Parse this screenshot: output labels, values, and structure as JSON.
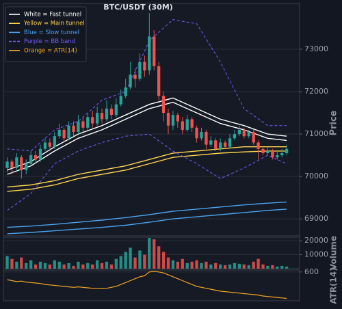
{
  "chart_data": {
    "type": "candlestick",
    "title": "BTC/USDT (30M)",
    "ylabel": "Price",
    "up_color": "#26a69a",
    "down_color": "#ef5350",
    "xlim": [
      -0.8,
      61
    ],
    "ylim": [
      68600,
      74080
    ],
    "yticks": [
      69000,
      70000,
      71000,
      72000,
      73000
    ],
    "grid": true,
    "legend_loc": "upper left",
    "x": [
      0,
      1,
      2,
      3,
      4,
      5,
      6,
      7,
      8,
      9,
      10,
      11,
      12,
      13,
      14,
      15,
      16,
      17,
      18,
      19,
      20,
      21,
      22,
      23,
      24,
      25,
      26,
      27,
      28,
      29,
      30,
      31,
      32,
      33,
      34,
      35,
      36,
      37,
      38,
      39,
      40,
      41,
      42,
      43,
      44,
      45,
      46,
      47,
      48,
      49,
      50,
      51,
      52,
      53,
      54,
      55,
      56,
      57,
      58,
      59
    ],
    "open": [
      70200,
      70350,
      70200,
      70450,
      70150,
      70300,
      70500,
      70400,
      70650,
      70800,
      70700,
      70950,
      71100,
      70900,
      71200,
      71050,
      71300,
      71150,
      71400,
      71250,
      71500,
      71350,
      71600,
      71450,
      71700,
      71900,
      72100,
      72400,
      72300,
      72700,
      72500,
      73300,
      72600,
      71900,
      71500,
      71200,
      71450,
      71300,
      71100,
      71350,
      71150,
      70900,
      71050,
      70750,
      70850,
      70650,
      70800,
      70700,
      70900,
      71000,
      71100,
      70950,
      71050,
      70800,
      70650,
      70550,
      70600,
      70450,
      70500,
      70550
    ],
    "high": [
      70450,
      70400,
      70550,
      70500,
      70400,
      70600,
      70600,
      70750,
      70900,
      70900,
      71050,
      71250,
      71150,
      71300,
      71300,
      71450,
      71400,
      71500,
      71550,
      71650,
      71600,
      71800,
      71700,
      71850,
      72050,
      72300,
      72700,
      72550,
      72900,
      72850,
      73850,
      73450,
      72700,
      72000,
      71600,
      71550,
      71500,
      71400,
      71450,
      71400,
      71200,
      71150,
      71100,
      70950,
      70900,
      70900,
      70850,
      71000,
      71100,
      71200,
      71150,
      71100,
      71100,
      70850,
      70700,
      70700,
      70650,
      70600,
      70650,
      70750
    ],
    "low": [
      70100,
      70050,
      70100,
      69950,
      70050,
      70250,
      70300,
      70350,
      70600,
      70600,
      70650,
      70900,
      70800,
      70850,
      70950,
      71000,
      71050,
      71100,
      71150,
      71200,
      71250,
      71300,
      71350,
      71400,
      71650,
      71850,
      72050,
      72100,
      72250,
      72350,
      72400,
      72500,
      71800,
      71300,
      71000,
      71100,
      71150,
      71000,
      71050,
      71050,
      70800,
      70850,
      70650,
      70700,
      70600,
      70600,
      70650,
      70650,
      70850,
      70950,
      70900,
      70900,
      70750,
      70400,
      70500,
      70500,
      70400,
      70400,
      70450,
      70500
    ],
    "close": [
      70350,
      70200,
      70450,
      70150,
      70300,
      70500,
      70400,
      70650,
      70800,
      70700,
      70950,
      71100,
      70900,
      71200,
      71050,
      71300,
      71150,
      71400,
      71250,
      71500,
      71350,
      71600,
      71450,
      71700,
      71900,
      72100,
      72400,
      72300,
      72700,
      72500,
      73300,
      72600,
      71900,
      71500,
      71200,
      71450,
      71300,
      71100,
      71350,
      71150,
      70900,
      71050,
      70750,
      70850,
      70650,
      70800,
      70700,
      70900,
      71000,
      71100,
      70950,
      71050,
      70800,
      70650,
      70550,
      70600,
      70450,
      70500,
      70550,
      70650
    ],
    "line_x": [
      0,
      5,
      10,
      15,
      20,
      25,
      30,
      35,
      40,
      45,
      50,
      55,
      59
    ],
    "bands": [
      {
        "name": "White = Fast tunnel",
        "color": "#ffffff",
        "dashed": false,
        "upper": [
          70150,
          70350,
          70700,
          71000,
          71200,
          71450,
          71700,
          71850,
          71600,
          71350,
          71200,
          71000,
          70950
        ],
        "lower": [
          70050,
          70250,
          70600,
          70900,
          71100,
          71350,
          71600,
          71750,
          71500,
          71250,
          71100,
          70900,
          70850
        ]
      },
      {
        "name": "Yellow = Main tunnel",
        "color": "#ffd54f",
        "dashed": false,
        "upper": [
          69750,
          69800,
          69900,
          70050,
          70150,
          70250,
          70400,
          70550,
          70600,
          70650,
          70700,
          70700,
          70700
        ],
        "lower": [
          69650,
          69700,
          69800,
          69950,
          70050,
          70150,
          70300,
          70450,
          70500,
          70550,
          70580,
          70600,
          70600
        ]
      },
      {
        "name": "Blue = Slow tunnel",
        "color": "#4aa3ef",
        "dashed": false,
        "upper": [
          68800,
          68830,
          68870,
          68920,
          68970,
          69030,
          69100,
          69180,
          69230,
          69280,
          69330,
          69370,
          69400
        ],
        "lower": [
          68650,
          68680,
          68720,
          68760,
          68800,
          68850,
          68920,
          69000,
          69050,
          69100,
          69150,
          69200,
          69230
        ]
      },
      {
        "name": "Purple = BB band",
        "color": "#7b5cff",
        "dashed": true,
        "upper": [
          70650,
          70600,
          71100,
          71300,
          71800,
          72000,
          73200,
          73700,
          73600,
          72700,
          71600,
          71200,
          71200
        ],
        "lower": [
          69200,
          69600,
          70300,
          70600,
          70800,
          70950,
          71000,
          70600,
          70300,
          69950,
          70200,
          70500,
          70300
        ]
      }
    ],
    "volume": {
      "ylabel": "Volume",
      "ylim": [
        0,
        22500
      ],
      "yticks": [
        10000,
        20000
      ],
      "values": [
        9000,
        7000,
        5000,
        8000,
        4000,
        6000,
        3000,
        5000,
        4000,
        3000,
        6000,
        5000,
        3000,
        4000,
        2000,
        5000,
        3000,
        4000,
        3000,
        6000,
        4000,
        5000,
        3000,
        7000,
        9000,
        12000,
        15000,
        8000,
        13000,
        10000,
        22000,
        21000,
        16000,
        12000,
        8000,
        6000,
        5000,
        7000,
        4000,
        5000,
        6000,
        4000,
        5000,
        3000,
        4000,
        3000,
        2500,
        3000,
        4000,
        3500,
        3000,
        2500,
        5000,
        7000,
        3000,
        2000,
        2500,
        1500,
        2000,
        1500
      ]
    },
    "atr": {
      "name": "Orange = ATR(14)",
      "ylabel": "ATR(14)",
      "color": "#f5a623",
      "ylim": [
        300,
        620
      ],
      "yticks": [
        600
      ],
      "values": [
        520,
        510,
        500,
        505,
        495,
        490,
        485,
        480,
        470,
        465,
        460,
        455,
        450,
        445,
        440,
        445,
        440,
        435,
        430,
        430,
        425,
        430,
        440,
        450,
        470,
        490,
        510,
        530,
        550,
        560,
        600,
        605,
        600,
        590,
        570,
        550,
        530,
        510,
        490,
        470,
        450,
        440,
        430,
        420,
        410,
        400,
        395,
        390,
        385,
        380,
        375,
        370,
        365,
        360,
        350,
        345,
        340,
        335,
        330,
        325
      ]
    }
  }
}
